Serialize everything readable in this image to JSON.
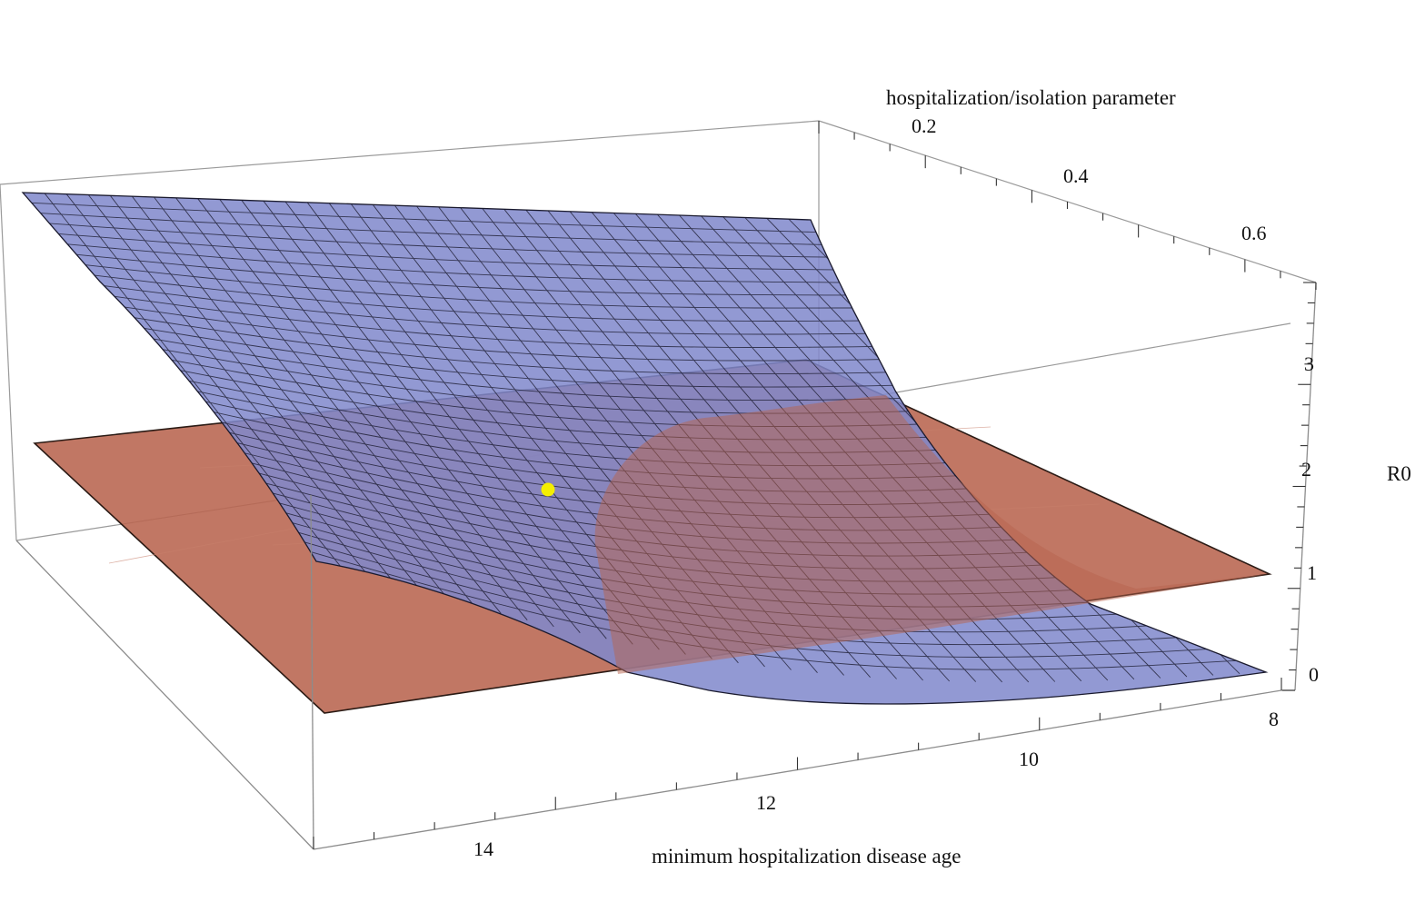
{
  "chart_data": {
    "type": "surface3d",
    "axes": {
      "x": {
        "label": "minimum hospitalization disease age",
        "ticks": [
          8,
          10,
          12,
          14
        ],
        "range": [
          7.5,
          15.5
        ]
      },
      "y": {
        "label": "hospitalization/isolation parameter",
        "ticks": [
          0.2,
          0.4,
          0.6
        ],
        "range": [
          0.15,
          0.75
        ]
      },
      "z": {
        "label": "R0",
        "ticks": [
          0,
          1,
          2,
          3
        ],
        "range": [
          -0.1,
          3.7
        ]
      }
    },
    "series": [
      {
        "kind": "surface",
        "color": "#8088cc",
        "mesh_color": "#1a1a2e",
        "grid_points": [
          {
            "x": 15.5,
            "y": 0.15,
            "z": 3.7
          },
          {
            "x": 10.4,
            "y": 0.15,
            "z": 3.6
          },
          {
            "x": 7.5,
            "y": 0.75,
            "z": 0.0
          },
          {
            "x": 15.5,
            "y": 0.75,
            "z": 2.05
          },
          {
            "x": 11.0,
            "y": 0.75,
            "z": 0.0
          }
        ]
      },
      {
        "kind": "plane",
        "color": "#b8644e",
        "z": 1
      },
      {
        "kind": "point",
        "color": "#f4ee00",
        "x": 13.0,
        "y": 0.35,
        "z": 1.85
      }
    ],
    "grid": false,
    "box": true
  }
}
